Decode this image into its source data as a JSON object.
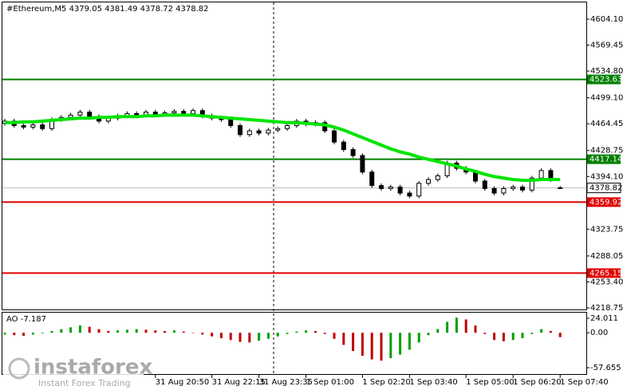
{
  "chart_data": [
    {
      "type": "candlestick",
      "title": "#Ethereum,M5  4379.05 4381.49 4378.72 4378.82",
      "categories": [
        null,
        null,
        null,
        null,
        null,
        null,
        null,
        null,
        null,
        null,
        null,
        null,
        null,
        null,
        null,
        null,
        "31 Aug 20:50",
        null,
        null,
        null,
        null,
        null,
        "31 Aug 22:15",
        null,
        null,
        null,
        null,
        "31 Aug 23:35",
        null,
        null,
        null,
        null,
        "1 Sep 01:00",
        null,
        null,
        null,
        null,
        null,
        "1 Sep 02:20",
        null,
        null,
        null,
        null,
        "1 Sep 03:40",
        null,
        null,
        null,
        null,
        null,
        "1 Sep 05:00",
        null,
        null,
        null,
        null,
        "1 Sep 06:20",
        null,
        null,
        null,
        null,
        "1 Sep 07:40"
      ],
      "open": [
        4465,
        4468,
        4462,
        4460,
        4463,
        4458,
        4470,
        4473,
        4476,
        4480,
        4474,
        4468,
        4472,
        4475,
        4478,
        4476,
        4480,
        4477,
        4479,
        4481,
        4478,
        4482,
        4475,
        4472,
        4470,
        4462,
        4450,
        4455,
        4452,
        4456,
        4458,
        4462,
        4468,
        4464,
        4466,
        4455,
        4440,
        4430,
        4422,
        4400,
        4382,
        4378,
        4380,
        4372,
        4368,
        4385,
        4390,
        4395,
        4412,
        4405,
        4400,
        4388,
        4378,
        4372,
        4378,
        4380,
        4376,
        4392,
        4402,
        4379.05
      ],
      "high": [
        4471,
        4471,
        4465,
        4466,
        4466,
        4473,
        4476,
        4479,
        4483,
        4483,
        4477,
        4475,
        4478,
        4481,
        4481,
        4483,
        4483,
        4482,
        4484,
        4484,
        4485,
        4485,
        4478,
        4475,
        4473,
        4465,
        4458,
        4458,
        4459,
        4461,
        4465,
        4471,
        4471,
        4469,
        4469,
        4458,
        4443,
        4433,
        4425,
        4403,
        4385,
        4383,
        4383,
        4375,
        4388,
        4393,
        4398,
        4415,
        4415,
        4408,
        4403,
        4391,
        4381,
        4381,
        4383,
        4383,
        4395,
        4405,
        4405,
        4381.49
      ],
      "low": [
        4462,
        4459,
        4457,
        4457,
        4455,
        4455,
        4467,
        4470,
        4473,
        4471,
        4465,
        4465,
        4469,
        4472,
        4473,
        4473,
        4474,
        4474,
        4476,
        4475,
        4475,
        4472,
        4469,
        4467,
        4459,
        4447,
        4447,
        4449,
        4449,
        4453,
        4455,
        4459,
        4461,
        4461,
        4452,
        4437,
        4427,
        4419,
        4397,
        4379,
        4375,
        4375,
        4369,
        4365,
        4365,
        4382,
        4387,
        4392,
        4402,
        4397,
        4385,
        4375,
        4369,
        4369,
        4375,
        4373,
        4373,
        4389,
        4387,
        4378.72
      ],
      "close": [
        4468,
        4462,
        4460,
        4463,
        4458,
        4470,
        4473,
        4476,
        4480,
        4474,
        4468,
        4472,
        4475,
        4478,
        4476,
        4480,
        4477,
        4479,
        4481,
        4478,
        4482,
        4475,
        4472,
        4470,
        4462,
        4450,
        4455,
        4452,
        4456,
        4458,
        4462,
        4468,
        4464,
        4466,
        4455,
        4440,
        4430,
        4422,
        4400,
        4382,
        4378,
        4380,
        4372,
        4368,
        4385,
        4390,
        4395,
        4412,
        4405,
        4400,
        4388,
        4378,
        4372,
        4378,
        4380,
        4376,
        4392,
        4402,
        4390,
        4378.82
      ],
      "moving_average": {
        "color": "#00e400",
        "values": [
          4466,
          4466,
          4467,
          4467,
          4468,
          4469,
          4470,
          4471,
          4472,
          4472,
          4473,
          4473,
          4474,
          4474,
          4474,
          4475,
          4475,
          4476,
          4476,
          4476,
          4476,
          4475,
          4474,
          4473,
          4472,
          4471,
          4470,
          4469,
          4468,
          4467,
          4466,
          4466,
          4465,
          4464,
          4463,
          4460,
          4456,
          4451,
          4446,
          4441,
          4436,
          4431,
          4427,
          4424,
          4420,
          4417,
          4414,
          4411,
          4408,
          4404,
          4401,
          4397,
          4394,
          4392,
          4390,
          4389,
          4389,
          4390,
          4390,
          4390
        ]
      },
      "levels": [
        {
          "value": 4523.63,
          "color": "#008000"
        },
        {
          "value": 4417.14,
          "color": "#008000"
        },
        {
          "value": 4359.92,
          "color": "#e00000"
        },
        {
          "value": 4265.15,
          "color": "#e00000"
        }
      ],
      "ylim": [
        4218.75,
        4604.1
      ],
      "yticks": [
        {
          "value": 4604.1,
          "label": "4604.10"
        },
        4569.45,
        {
          "value": 4534.8,
          "label": "4534.80"
        },
        {
          "value": 4499.1,
          "label": "4499.10"
        },
        4464.45,
        4428.75,
        {
          "value": 4394.1,
          "label": "4394.10"
        },
        4323.75,
        4288.05,
        {
          "value": 4253.4,
          "label": "4253.40"
        },
        4218.75
      ]
    },
    {
      "type": "bar",
      "title": "AO -7.187",
      "up_color": "#00a000",
      "down_color": "#c00000",
      "values": [
        -3,
        -4,
        -5,
        -3,
        -1,
        3,
        6,
        9,
        12,
        10,
        6,
        3,
        4,
        5,
        6,
        5,
        4,
        3,
        4,
        2,
        0,
        -3,
        -6,
        -9,
        -12,
        -15,
        -16,
        -13,
        -10,
        -6,
        -2,
        2,
        4,
        3,
        -2,
        -10,
        -20,
        -30,
        -38,
        -44,
        -46,
        -42,
        -36,
        -28,
        -16,
        -4,
        6,
        18,
        25,
        22,
        12,
        -2,
        -12,
        -14,
        -12,
        -9,
        -2,
        6,
        3,
        -7.187
      ],
      "ylim": [
        -57.655,
        24.011
      ],
      "yticks": [
        24.011,
        {
          "value": 0,
          "label": "0.00"
        },
        -57.655
      ]
    }
  ],
  "watermark": {
    "brand": "instaforex",
    "tagline": "Instant Forex Trading"
  }
}
